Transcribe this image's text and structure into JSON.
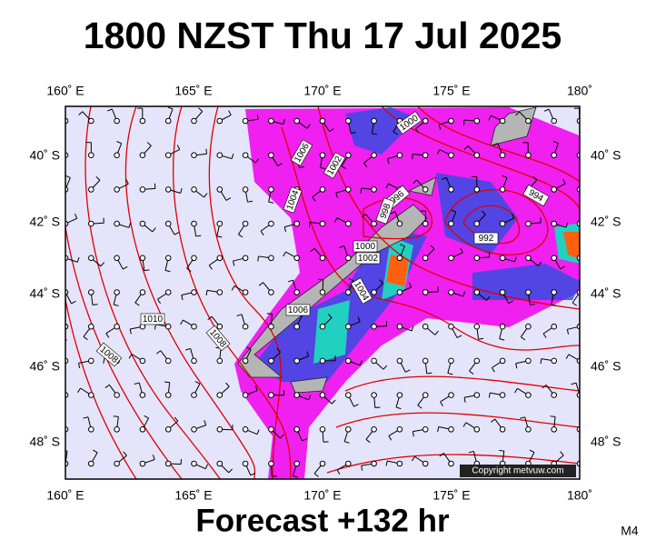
{
  "header": {
    "title": "1800 NZST Thu 17 Jul 2025"
  },
  "map": {
    "lon_labels_top": [
      "160˚ E",
      "165˚ E",
      "170˚ E",
      "175˚ E",
      "180˚"
    ],
    "lon_labels_bottom": [
      "160˚ E",
      "165˚ E",
      "170˚ E",
      "175˚ E",
      "180˚"
    ],
    "lat_labels_left": [
      "40˚ S",
      "42˚ S",
      "44˚ S",
      "46˚ S",
      "48˚ S"
    ],
    "lat_labels_right": [
      "40˚ S",
      "42˚ S",
      "44˚ S",
      "46˚ S",
      "48˚ S"
    ],
    "isobar_labels": [
      "1000",
      "1006",
      "1002",
      "1004",
      "996",
      "998",
      "994",
      "992",
      "1000",
      "1002",
      "1004",
      "1006",
      "1010",
      "1008",
      "1008"
    ],
    "copyright": "Copyright metvuw.com"
  },
  "footer": {
    "forecast": "Forecast +132 hr",
    "model": "M4"
  }
}
